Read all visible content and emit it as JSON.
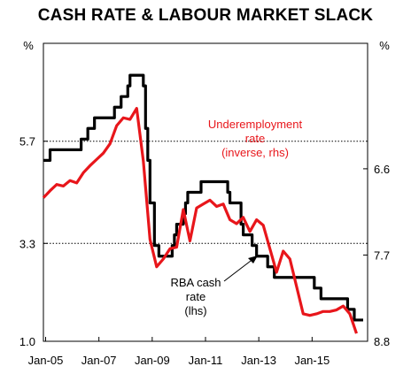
{
  "chart_data": {
    "type": "line",
    "title": "CASH RATE & LABOUR MARKET SLACK",
    "left_axis": {
      "unit": "%",
      "ylim": [
        1.0,
        8.0
      ],
      "ticks": [
        "5.7",
        "3.3",
        "1.0"
      ],
      "tick_values": [
        5.7,
        3.3,
        1.0
      ]
    },
    "right_axis": {
      "unit": "%",
      "inverted": true,
      "ylim": [
        5.0,
        8.8
      ],
      "ticks": [
        "6.6",
        "7.7",
        "8.8"
      ],
      "tick_values": [
        6.6,
        7.7,
        8.8
      ]
    },
    "x_axis": {
      "ticks": [
        "Jan-05",
        "Jan-07",
        "Jan-09",
        "Jan-11",
        "Jan-13",
        "Jan-15"
      ],
      "tick_values": [
        "2005-01",
        "2007-01",
        "2009-01",
        "2011-01",
        "2013-01",
        "2015-01"
      ],
      "xlim": [
        "2004-12",
        "2017-02"
      ]
    },
    "gridlines": [
      5.7,
      3.3
    ],
    "series": [
      {
        "name": "RBA cash rate (lhs)",
        "axis": "left",
        "color": "#000000",
        "points": [
          [
            "2004-12",
            5.25
          ],
          [
            "2005-03",
            5.5
          ],
          [
            "2006-05",
            5.75
          ],
          [
            "2006-08",
            6.0
          ],
          [
            "2006-11",
            6.25
          ],
          [
            "2007-08",
            6.5
          ],
          [
            "2007-11",
            6.75
          ],
          [
            "2008-02",
            7.0
          ],
          [
            "2008-03",
            7.25
          ],
          [
            "2008-09",
            7.0
          ],
          [
            "2008-10",
            6.0
          ],
          [
            "2008-11",
            5.25
          ],
          [
            "2008-12",
            4.25
          ],
          [
            "2009-02",
            3.25
          ],
          [
            "2009-04",
            3.0
          ],
          [
            "2009-10",
            3.25
          ],
          [
            "2009-11",
            3.5
          ],
          [
            "2009-12",
            3.75
          ],
          [
            "2010-03",
            4.0
          ],
          [
            "2010-04",
            4.25
          ],
          [
            "2010-05",
            4.5
          ],
          [
            "2010-11",
            4.75
          ],
          [
            "2011-11",
            4.5
          ],
          [
            "2011-12",
            4.25
          ],
          [
            "2012-05",
            3.75
          ],
          [
            "2012-06",
            3.5
          ],
          [
            "2012-10",
            3.25
          ],
          [
            "2012-12",
            3.0
          ],
          [
            "2013-05",
            2.75
          ],
          [
            "2013-08",
            2.5
          ],
          [
            "2015-02",
            2.25
          ],
          [
            "2015-05",
            2.0
          ],
          [
            "2016-05",
            1.75
          ],
          [
            "2016-08",
            1.5
          ],
          [
            "2016-12",
            1.5
          ]
        ]
      },
      {
        "name": "Underemployment rate (inverse, rhs)",
        "axis": "right",
        "color": "#e8161b",
        "points": [
          [
            "2004-12",
            6.97
          ],
          [
            "2005-03",
            6.88
          ],
          [
            "2005-06",
            6.8
          ],
          [
            "2005-09",
            6.82
          ],
          [
            "2005-12",
            6.75
          ],
          [
            "2006-03",
            6.78
          ],
          [
            "2006-06",
            6.65
          ],
          [
            "2006-09",
            6.56
          ],
          [
            "2006-12",
            6.48
          ],
          [
            "2007-03",
            6.4
          ],
          [
            "2007-06",
            6.28
          ],
          [
            "2007-09",
            6.05
          ],
          [
            "2007-12",
            5.95
          ],
          [
            "2008-03",
            5.97
          ],
          [
            "2008-06",
            5.83
          ],
          [
            "2008-09",
            6.5
          ],
          [
            "2008-12",
            7.5
          ],
          [
            "2009-03",
            7.85
          ],
          [
            "2009-06",
            7.75
          ],
          [
            "2009-09",
            7.62
          ],
          [
            "2009-12",
            7.6
          ],
          [
            "2010-03",
            7.12
          ],
          [
            "2010-06",
            7.52
          ],
          [
            "2010-09",
            7.1
          ],
          [
            "2010-12",
            7.05
          ],
          [
            "2011-03",
            7.0
          ],
          [
            "2011-06",
            7.08
          ],
          [
            "2011-09",
            7.05
          ],
          [
            "2011-12",
            7.25
          ],
          [
            "2012-03",
            7.3
          ],
          [
            "2012-06",
            7.22
          ],
          [
            "2012-09",
            7.4
          ],
          [
            "2012-12",
            7.25
          ],
          [
            "2013-03",
            7.32
          ],
          [
            "2013-06",
            7.62
          ],
          [
            "2013-09",
            7.92
          ],
          [
            "2013-12",
            7.65
          ],
          [
            "2014-03",
            7.75
          ],
          [
            "2014-06",
            8.1
          ],
          [
            "2014-09",
            8.45
          ],
          [
            "2014-12",
            8.47
          ],
          [
            "2015-03",
            8.45
          ],
          [
            "2015-06",
            8.42
          ],
          [
            "2015-09",
            8.42
          ],
          [
            "2015-12",
            8.4
          ],
          [
            "2016-03",
            8.35
          ],
          [
            "2016-06",
            8.45
          ],
          [
            "2016-09",
            8.7
          ]
        ]
      }
    ],
    "annotations": [
      {
        "lines": [
          "Underemployment",
          "rate",
          "(inverse, rhs)"
        ],
        "color": "#e8161b"
      },
      {
        "lines": [
          "RBA cash",
          "rate",
          "(lhs)"
        ],
        "color": "#000000"
      }
    ]
  }
}
